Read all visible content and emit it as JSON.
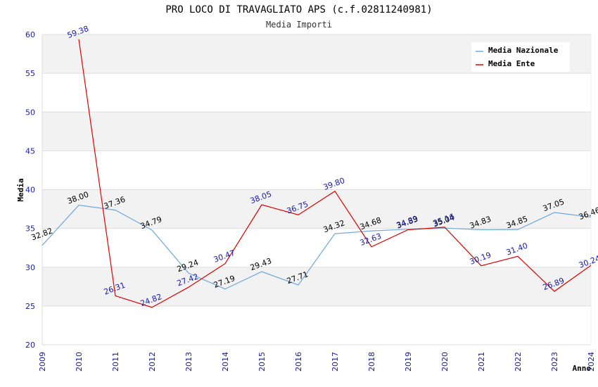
{
  "chart_data": {
    "type": "line",
    "title": "PRO LOCO DI TRAVAGLIATO APS (c.f.02811240981)",
    "subtitle": "Media Importi",
    "xlabel": "Anno",
    "ylabel": "Media",
    "ylim": [
      20,
      60
    ],
    "yticks": [
      "20",
      "25",
      "30",
      "35",
      "40",
      "45",
      "50",
      "55",
      "60"
    ],
    "categories": [
      "2009",
      "2010",
      "2011",
      "2012",
      "2013",
      "2014",
      "2015",
      "2016",
      "2017",
      "2018",
      "2019",
      "2020",
      "2021",
      "2022",
      "2023",
      "2024"
    ],
    "legend_position": "top-right",
    "series": [
      {
        "name": "Media Nazionale",
        "color": "#6fa8dc",
        "label_color": "#000000",
        "values": [
          32.82,
          38.0,
          37.36,
          34.79,
          29.24,
          27.19,
          29.43,
          27.71,
          34.32,
          34.68,
          34.89,
          35.04,
          34.83,
          34.85,
          37.05,
          36.46
        ],
        "labels": [
          "32.82",
          "38.00",
          "37.36",
          "34.79",
          "29.24",
          "27.19",
          "29.43",
          "27.71",
          "34.32",
          "34.68",
          "34.89",
          "35.04",
          "34.83",
          "34.85",
          "37.05",
          "36.46"
        ]
      },
      {
        "name": "Media Ente",
        "color": "#dd0000",
        "label_color": "#1a1aa6",
        "values": [
          null,
          59.38,
          26.31,
          24.82,
          27.42,
          30.47,
          38.05,
          36.75,
          39.8,
          32.63,
          34.83,
          35.16,
          30.19,
          31.4,
          26.89,
          30.24
        ],
        "labels": [
          null,
          "59.38",
          "26.31",
          "24.82",
          "27.42",
          "30.47",
          "38.05",
          "36.75",
          "39.80",
          "32.63",
          "34.83",
          "35.16",
          "30.19",
          "31.40",
          "26.89",
          "30.24"
        ]
      }
    ]
  }
}
